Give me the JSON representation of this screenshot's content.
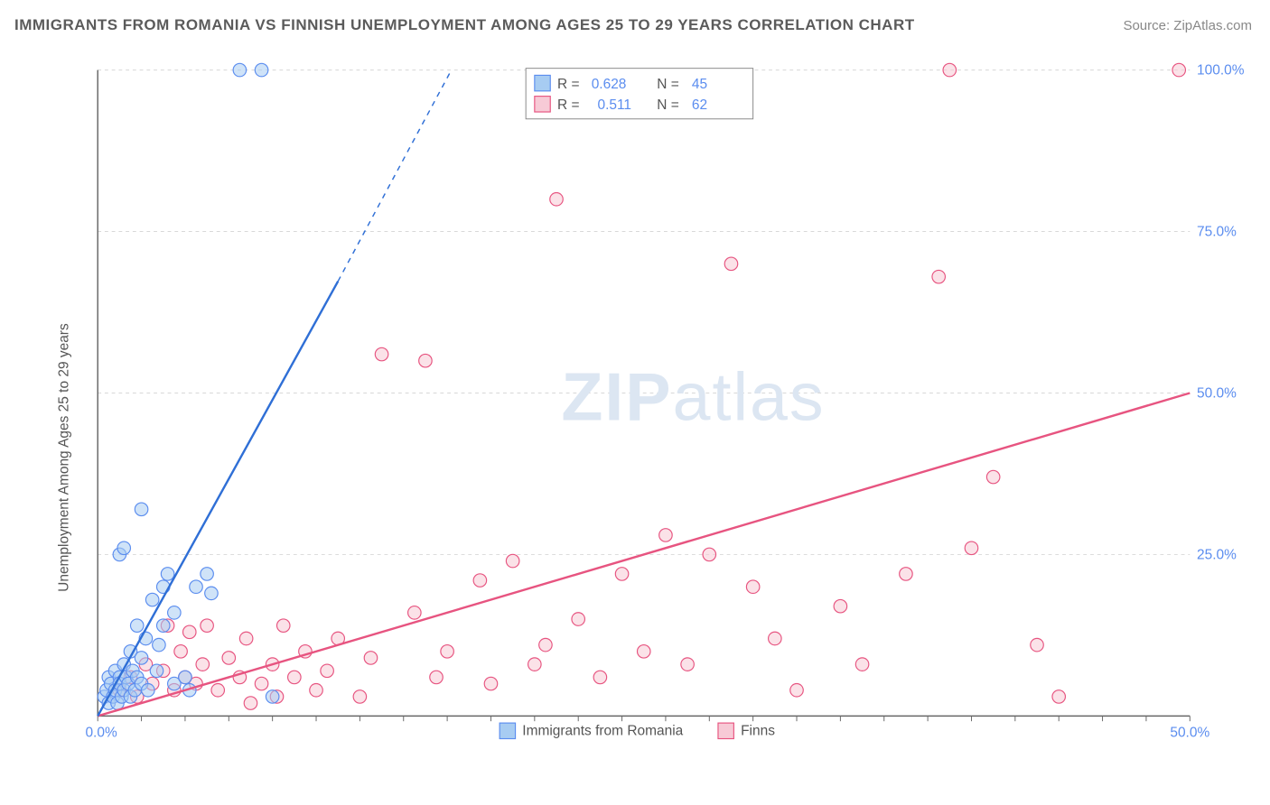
{
  "title": "IMMIGRANTS FROM ROMANIA VS FINNISH UNEMPLOYMENT AMONG AGES 25 TO 29 YEARS CORRELATION CHART",
  "source": "Source: ZipAtlas.com",
  "ylabel": "Unemployment Among Ages 25 to 29 years",
  "chart": {
    "type": "scatter",
    "xlim": [
      0,
      50
    ],
    "ylim": [
      0,
      100
    ],
    "yticks": [
      25,
      50,
      75,
      100
    ],
    "ytick_labels": [
      "25.0%",
      "50.0%",
      "75.0%",
      "100.0%"
    ],
    "x_start_label": "0.0%",
    "x_end_label": "50.0%",
    "marker_radius": 7.5,
    "background_color": "#ffffff",
    "grid_color": "#d8d8d8",
    "axis_color": "#666666",
    "series": [
      {
        "name": "Immigrants from Romania",
        "color_fill": "#a7ccf2",
        "color_stroke": "#5b8def",
        "R": 0.628,
        "N": 45,
        "trend": {
          "slope": 6.3,
          "intercept": -2,
          "solid_x_range": [
            0,
            11
          ],
          "dashed_x_range": [
            11,
            16.5
          ]
        },
        "points": [
          [
            0.3,
            3
          ],
          [
            0.4,
            4
          ],
          [
            0.5,
            2
          ],
          [
            0.5,
            6
          ],
          [
            0.6,
            5
          ],
          [
            0.7,
            3
          ],
          [
            0.8,
            4
          ],
          [
            0.8,
            7
          ],
          [
            0.9,
            2
          ],
          [
            1.0,
            6
          ],
          [
            1.0,
            5
          ],
          [
            1.1,
            3
          ],
          [
            1.2,
            8
          ],
          [
            1.2,
            4
          ],
          [
            1.3,
            6
          ],
          [
            1.4,
            5
          ],
          [
            1.5,
            10
          ],
          [
            1.5,
            3
          ],
          [
            1.6,
            7
          ],
          [
            1.7,
            4
          ],
          [
            1.8,
            6
          ],
          [
            2.0,
            9
          ],
          [
            2.0,
            5
          ],
          [
            2.2,
            12
          ],
          [
            2.3,
            4
          ],
          [
            2.5,
            18
          ],
          [
            2.7,
            7
          ],
          [
            3.0,
            20
          ],
          [
            3.2,
            22
          ],
          [
            3.5,
            5
          ],
          [
            4.0,
            6
          ],
          [
            4.2,
            4
          ],
          [
            4.5,
            20
          ],
          [
            5.0,
            22
          ],
          [
            5.2,
            19
          ],
          [
            1.0,
            25
          ],
          [
            1.2,
            26
          ],
          [
            2.0,
            32
          ],
          [
            3.0,
            14
          ],
          [
            3.5,
            16
          ],
          [
            6.5,
            100
          ],
          [
            7.5,
            100
          ],
          [
            8.0,
            3
          ],
          [
            1.8,
            14
          ],
          [
            2.8,
            11
          ]
        ]
      },
      {
        "name": "Finns",
        "color_fill": "#f7cad6",
        "color_stroke": "#e75480",
        "R": 0.511,
        "N": 62,
        "trend": {
          "slope": 1.04,
          "intercept": -2,
          "solid_x_range": [
            0,
            50
          ]
        },
        "points": [
          [
            1.0,
            4
          ],
          [
            1.5,
            6
          ],
          [
            1.8,
            3
          ],
          [
            2.2,
            8
          ],
          [
            2.5,
            5
          ],
          [
            3.0,
            7
          ],
          [
            3.2,
            14
          ],
          [
            3.5,
            4
          ],
          [
            3.8,
            10
          ],
          [
            4.0,
            6
          ],
          [
            4.2,
            13
          ],
          [
            4.5,
            5
          ],
          [
            4.8,
            8
          ],
          [
            5.0,
            14
          ],
          [
            5.5,
            4
          ],
          [
            6.0,
            9
          ],
          [
            6.5,
            6
          ],
          [
            6.8,
            12
          ],
          [
            7.0,
            2
          ],
          [
            7.5,
            5
          ],
          [
            8.0,
            8
          ],
          [
            8.2,
            3
          ],
          [
            8.5,
            14
          ],
          [
            9.0,
            6
          ],
          [
            9.5,
            10
          ],
          [
            10.0,
            4
          ],
          [
            10.5,
            7
          ],
          [
            11.0,
            12
          ],
          [
            12.0,
            3
          ],
          [
            12.5,
            9
          ],
          [
            13.0,
            56
          ],
          [
            14.5,
            16
          ],
          [
            15.0,
            55
          ],
          [
            15.5,
            6
          ],
          [
            16.0,
            10
          ],
          [
            17.5,
            21
          ],
          [
            18.0,
            5
          ],
          [
            19.0,
            24
          ],
          [
            20.0,
            8
          ],
          [
            20.5,
            11
          ],
          [
            21.0,
            80
          ],
          [
            22.0,
            15
          ],
          [
            23.0,
            6
          ],
          [
            24.0,
            22
          ],
          [
            25.0,
            10
          ],
          [
            26.0,
            28
          ],
          [
            27.0,
            8
          ],
          [
            28.0,
            25
          ],
          [
            29.0,
            70
          ],
          [
            30.0,
            20
          ],
          [
            31.0,
            12
          ],
          [
            32.0,
            4
          ],
          [
            34.0,
            17
          ],
          [
            35.0,
            8
          ],
          [
            37.0,
            22
          ],
          [
            38.5,
            68
          ],
          [
            40.0,
            26
          ],
          [
            41.0,
            37
          ],
          [
            43.0,
            11
          ],
          [
            44.0,
            3
          ],
          [
            39.0,
            100
          ],
          [
            49.5,
            100
          ]
        ]
      }
    ],
    "legend_box": {
      "labels": {
        "R": "R =",
        "N": "N ="
      }
    },
    "bottom_legend": {
      "items": [
        "Immigrants from Romania",
        "Finns"
      ]
    },
    "watermark": "ZIPatlas"
  }
}
